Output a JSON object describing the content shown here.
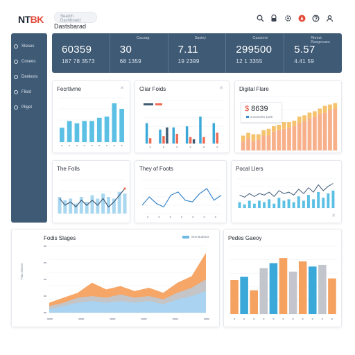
{
  "header": {
    "logo_main": "NT",
    "logo_accent": "BK",
    "search_placeholder": "Search Dashboard",
    "title": "Dastsbarad",
    "icons": [
      "search-icon",
      "lock-icon",
      "settings-icon",
      "alert-icon",
      "help-icon",
      "user-icon"
    ]
  },
  "sidebar": {
    "items": [
      {
        "label": "Steses"
      },
      {
        "label": "Cosees"
      },
      {
        "label": "Deniests"
      },
      {
        "label": "Flisst"
      },
      {
        "label": "Pliget"
      }
    ]
  },
  "kpis": [
    {
      "label": "",
      "value": "60359",
      "sub": "187 78 3573"
    },
    {
      "label": "Cacsag",
      "value": "30",
      "sub": "68 1359"
    },
    {
      "label": "Sasiey",
      "value": "7.11",
      "sub": "19 2399"
    },
    {
      "label": "Casanne",
      "value": "299500",
      "sub": "12 1 3355"
    },
    {
      "label": "Rieest Rasgsnues",
      "value": "5.57",
      "sub": "4.41 59"
    }
  ],
  "cards": {
    "c1": {
      "title": "Fecrtlvme"
    },
    "c2": {
      "title": "Cliar Foids"
    },
    "c3": {
      "title": "Digital Flare",
      "badge_currency": "$",
      "badge_value": "8639",
      "badge_sub": "Unsotsoles 1185"
    },
    "c4": {
      "title": "The Folls"
    },
    "c5": {
      "title": "They of Foots"
    },
    "c6": {
      "title": "Pocal Llers"
    },
    "c7": {
      "title": "Fodis Slages",
      "legend_label": "Snn Budsect",
      "y_label": "Flas Sloves"
    },
    "c8": {
      "title": "Pedes Gaeoy"
    }
  },
  "colors": {
    "navy": "#3f5a75",
    "blue": "#3aa8d8",
    "sky": "#5bc0e4",
    "orange": "#f5a15f",
    "peach": "#f7b08a",
    "red": "#ef6a52",
    "yellow": "#f5c36e",
    "gray": "#c2c6cc",
    "accent": "#e24b3b"
  },
  "chart_data": [
    {
      "id": "c1",
      "type": "bar",
      "title": "Fecrtlvme",
      "series": [
        {
          "values": [
            26,
            38,
            34,
            38,
            38,
            44,
            46,
            70,
            60
          ]
        }
      ],
      "ylim": [
        0,
        80
      ]
    },
    {
      "id": "c2",
      "type": "bar",
      "title": "Cliar Foids",
      "series": [
        {
          "values": [
            38,
            26,
            30,
            32,
            50,
            38
          ]
        },
        {
          "values": [
            10,
            14,
            18,
            12,
            12,
            20
          ]
        },
        {
          "values": [
            0,
            30,
            0,
            8,
            0,
            0
          ]
        }
      ],
      "ylim": [
        0,
        80
      ]
    },
    {
      "id": "c3",
      "type": "bar",
      "title": "Digital Flare",
      "series": [
        {
          "values": [
            14,
            18,
            14,
            16,
            22,
            22,
            28,
            30,
            32,
            34,
            36,
            40,
            44,
            48,
            50,
            54,
            56,
            60,
            62
          ]
        },
        {
          "values": [
            8,
            8,
            10,
            8,
            8,
            10,
            8,
            8,
            10,
            8,
            8,
            10,
            8,
            8,
            8,
            8,
            10,
            8,
            8
          ]
        }
      ],
      "ylim": [
        0,
        80
      ]
    },
    {
      "id": "c4",
      "type": "area",
      "title": "The Folls",
      "series": [
        {
          "values": [
            20,
            16,
            18,
            12,
            20,
            14,
            22,
            18,
            24,
            20,
            18,
            26,
            24
          ]
        },
        {
          "values": [
            18,
            10,
            14,
            8,
            16,
            10,
            16,
            10,
            18,
            8,
            14,
            22,
            30
          ]
        }
      ],
      "ylim": [
        0,
        40
      ]
    },
    {
      "id": "c5",
      "type": "line",
      "title": "They of Foots",
      "series": [
        {
          "values": [
            10,
            20,
            12,
            8,
            22,
            26,
            16,
            14,
            24,
            30,
            16,
            22
          ]
        }
      ],
      "ylim": [
        0,
        40
      ]
    },
    {
      "id": "c6",
      "type": "bar",
      "title": "Pocal Llers",
      "series": [
        {
          "values": [
            8,
            5,
            10,
            6,
            10,
            8,
            12,
            6,
            14,
            10,
            12,
            8,
            16,
            10,
            18,
            12,
            22,
            14,
            20,
            24
          ]
        }
      ],
      "ylim": [
        0,
        40
      ]
    },
    {
      "id": "c7",
      "type": "area",
      "title": "Fodis Slages",
      "series": [
        {
          "name": "Snn Budsect",
          "values": [
            12,
            18,
            24,
            36,
            28,
            32,
            26,
            30,
            24,
            36,
            44,
            72
          ]
        },
        {
          "values": [
            8,
            12,
            18,
            20,
            18,
            22,
            18,
            20,
            16,
            24,
            30,
            40
          ]
        },
        {
          "values": [
            4,
            8,
            12,
            14,
            12,
            14,
            12,
            14,
            10,
            16,
            20,
            26
          ]
        }
      ],
      "ylim": [
        0,
        80
      ]
    },
    {
      "id": "c8",
      "type": "bar",
      "title": "Pedes Gaeoy",
      "series": [
        {
          "values": [
            40,
            44,
            28,
            54,
            60,
            66,
            50,
            62,
            56,
            58,
            42
          ]
        }
      ],
      "ylim": [
        0,
        80
      ]
    }
  ]
}
